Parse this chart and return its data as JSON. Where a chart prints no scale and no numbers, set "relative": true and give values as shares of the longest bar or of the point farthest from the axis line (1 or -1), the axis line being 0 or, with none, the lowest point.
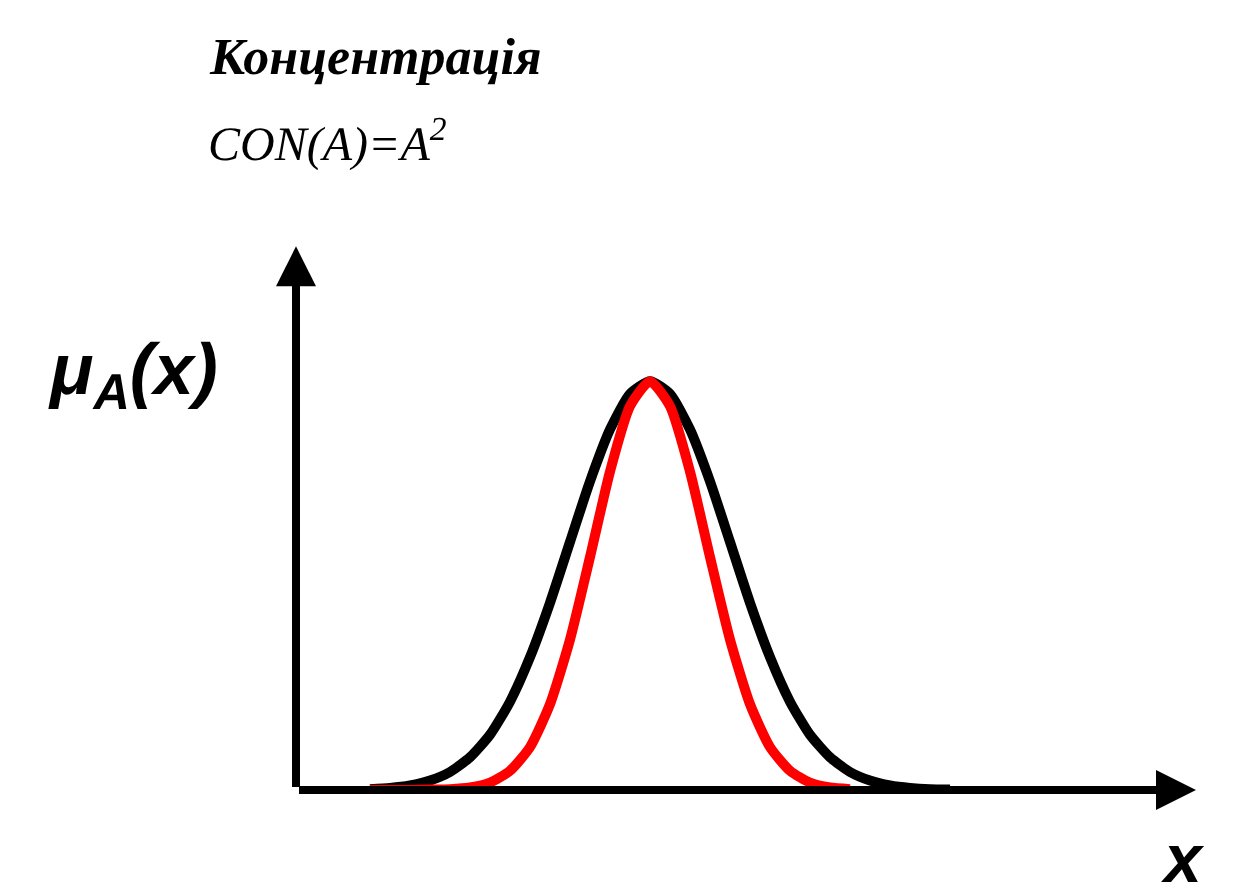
{
  "chart_data": {
    "type": "line",
    "relative": true,
    "title": "Концентрація",
    "subtitle": "CON(A)=A$^{2}$",
    "ylabel": "μ$_{A}$(x)",
    "xlabel": "x",
    "categories": [
      null,
      null,
      null,
      null,
      null,
      null,
      null,
      null,
      null,
      null,
      null,
      null,
      null,
      null,
      null,
      null,
      null,
      null,
      null,
      null,
      null,
      null,
      null,
      null,
      null,
      null,
      null,
      null,
      null,
      null
    ],
    "series": [
      {
        "color": "#000000",
        "values": [
          0.002,
          0.005,
          0.011,
          0.023,
          0.044,
          0.08,
          0.135,
          0.216,
          0.325,
          0.458,
          0.607,
          0.755,
          0.882,
          0.969,
          1,
          0.969,
          0.882,
          0.755,
          0.607,
          0.458,
          0.325,
          0.216,
          0.135,
          0.08,
          0.044,
          0.023,
          0.011,
          0.005,
          0.002,
          0.001
        ]
      },
      {
        "color": "#ff0000",
        "values": [
          0,
          0,
          0,
          0.001,
          0.002,
          0.006,
          0.018,
          0.047,
          0.105,
          0.21,
          0.368,
          0.57,
          0.779,
          0.939,
          1,
          0.939,
          0.779,
          0.57,
          0.368,
          0.21,
          0.105,
          0.047,
          0.018,
          0.006,
          0.002,
          null,
          null,
          null,
          null,
          null
        ]
      }
    ],
    "legend": false,
    "marker": "none",
    "line_style": "solid",
    "tick_labels": false
  }
}
